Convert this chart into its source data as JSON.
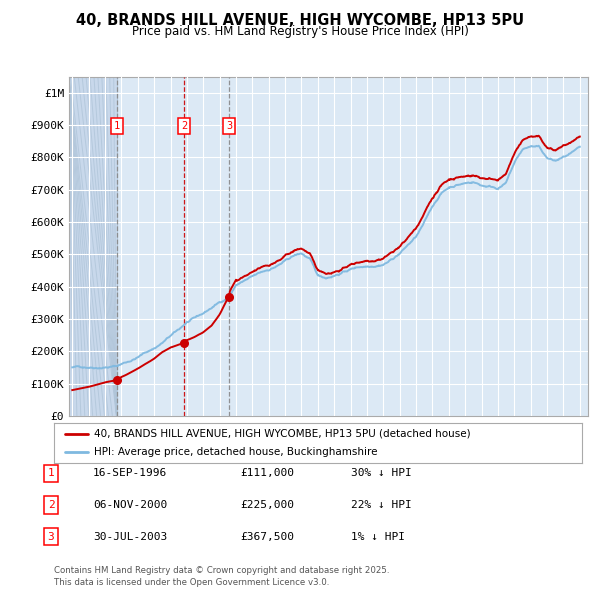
{
  "title": "40, BRANDS HILL AVENUE, HIGH WYCOMBE, HP13 5PU",
  "subtitle": "Price paid vs. HM Land Registry's House Price Index (HPI)",
  "bg_color": "#dce9f5",
  "grid_color": "#ffffff",
  "sale_color": "#cc0000",
  "hpi_color": "#7fb9e0",
  "sales": [
    {
      "date": 1996.71,
      "price": 111000,
      "label": "1"
    },
    {
      "date": 2000.84,
      "price": 225000,
      "label": "2"
    },
    {
      "date": 2003.58,
      "price": 367500,
      "label": "3"
    }
  ],
  "ylim": [
    0,
    1050000
  ],
  "xlim": [
    1993.8,
    2025.5
  ],
  "yticks": [
    0,
    100000,
    200000,
    300000,
    400000,
    500000,
    600000,
    700000,
    800000,
    900000,
    1000000
  ],
  "ytick_labels": [
    "£0",
    "£100K",
    "£200K",
    "£300K",
    "£400K",
    "£500K",
    "£600K",
    "£700K",
    "£800K",
    "£900K",
    "£1M"
  ],
  "xticks": [
    1994,
    1995,
    1996,
    1997,
    1998,
    1999,
    2000,
    2001,
    2002,
    2003,
    2004,
    2005,
    2006,
    2007,
    2008,
    2009,
    2010,
    2011,
    2012,
    2013,
    2014,
    2015,
    2016,
    2017,
    2018,
    2019,
    2020,
    2021,
    2022,
    2023,
    2024,
    2025
  ],
  "legend_sale_label": "40, BRANDS HILL AVENUE, HIGH WYCOMBE, HP13 5PU (detached house)",
  "legend_hpi_label": "HPI: Average price, detached house, Buckinghamshire",
  "table": [
    {
      "num": "1",
      "date": "16-SEP-1996",
      "price": "£111,000",
      "note": "30% ↓ HPI"
    },
    {
      "num": "2",
      "date": "06-NOV-2000",
      "price": "£225,000",
      "note": "22% ↓ HPI"
    },
    {
      "num": "3",
      "date": "30-JUL-2003",
      "price": "£367,500",
      "note": "1% ↓ HPI"
    }
  ],
  "footer": "Contains HM Land Registry data © Crown copyright and database right 2025.\nThis data is licensed under the Open Government Licence v3.0."
}
